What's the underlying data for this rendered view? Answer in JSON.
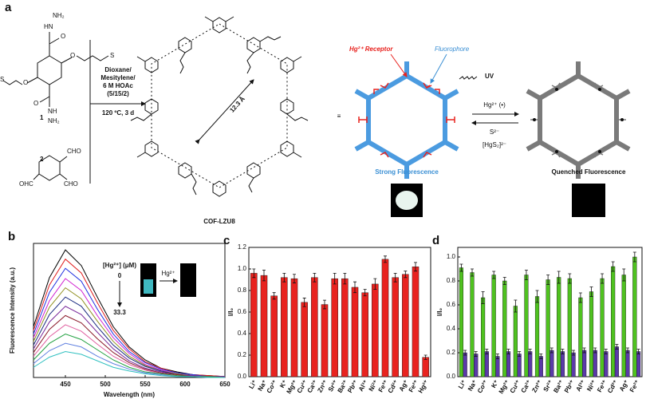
{
  "scheme": {
    "label": "a",
    "monomer_1": "1",
    "monomer_2": "2",
    "monomer_1_atoms": [
      "NH₂",
      "HN",
      "O",
      "O",
      "S",
      "O",
      "S",
      "O",
      "NH",
      "NH₂"
    ],
    "monomer_2_atoms": [
      "CHO",
      "OHC",
      "CHO"
    ],
    "conditions": [
      "Dioxane/",
      "Mesitylene/",
      "6 M HOAc",
      "(5/15/2)"
    ],
    "temperature": "120 ºC, 3 d",
    "pore_size": "12.3 Å",
    "cof_name": "COF-LZU8",
    "equivalent": "≡",
    "receptor": "Hg²⁺ Receptor",
    "fluorophore": "Fluorophore",
    "light": "UV",
    "forward": "Hg²⁺ (•)",
    "reverse": "S²⁻",
    "byproduct": "[HgS₂]²⁻",
    "state_on": "Strong Fluorescence",
    "state_off": "Quenched Fluorescence"
  },
  "chart_data": [
    {
      "type": "line",
      "label": "b",
      "xlabel": "Wavelength (nm)",
      "ylabel": "Fluorescence Intensity (a.u.)",
      "x": [
        410,
        430,
        450,
        470,
        490,
        510,
        530,
        550,
        570,
        590,
        610,
        630,
        650
      ],
      "xlim": [
        410,
        650
      ],
      "xticks": [
        450,
        500,
        550,
        600,
        650
      ],
      "ylim": [
        0,
        1.45
      ],
      "inset": {
        "title": "[Hg²⁺] (μM)",
        "start": "0",
        "end": "33.3",
        "reagent": "Hg²⁺"
      },
      "series": [
        {
          "color": "#000000",
          "values": [
            0.55,
            1.08,
            1.38,
            1.21,
            0.87,
            0.55,
            0.33,
            0.19,
            0.1,
            0.06,
            0.03,
            0.02,
            0.01
          ]
        },
        {
          "color": "#e02020",
          "values": [
            0.51,
            1.0,
            1.28,
            1.13,
            0.81,
            0.51,
            0.31,
            0.17,
            0.1,
            0.05,
            0.03,
            0.02,
            0.01
          ]
        },
        {
          "color": "#2030e0",
          "values": [
            0.47,
            0.92,
            1.18,
            1.04,
            0.74,
            0.47,
            0.28,
            0.16,
            0.09,
            0.05,
            0.03,
            0.01,
            0.01
          ]
        },
        {
          "color": "#d020d0",
          "values": [
            0.43,
            0.83,
            1.07,
            0.94,
            0.67,
            0.43,
            0.26,
            0.14,
            0.08,
            0.04,
            0.02,
            0.01,
            0.01
          ]
        },
        {
          "color": "#909020",
          "values": [
            0.39,
            0.76,
            0.97,
            0.85,
            0.61,
            0.39,
            0.23,
            0.13,
            0.07,
            0.04,
            0.02,
            0.01,
            0.01
          ]
        },
        {
          "color": "#1a2a80",
          "values": [
            0.35,
            0.68,
            0.87,
            0.77,
            0.55,
            0.35,
            0.21,
            0.12,
            0.07,
            0.03,
            0.02,
            0.01,
            0.01
          ]
        },
        {
          "color": "#7a2a9a",
          "values": [
            0.31,
            0.6,
            0.77,
            0.68,
            0.49,
            0.31,
            0.18,
            0.1,
            0.06,
            0.03,
            0.02,
            0.01,
            0.01
          ]
        },
        {
          "color": "#8a1a2a",
          "values": [
            0.27,
            0.52,
            0.67,
            0.59,
            0.42,
            0.27,
            0.16,
            0.09,
            0.05,
            0.03,
            0.01,
            0.01,
            0.0
          ]
        },
        {
          "color": "#e060a0",
          "values": [
            0.23,
            0.44,
            0.57,
            0.5,
            0.36,
            0.23,
            0.14,
            0.08,
            0.04,
            0.02,
            0.01,
            0.01,
            0.0
          ]
        },
        {
          "color": "#20a040",
          "values": [
            0.19,
            0.37,
            0.47,
            0.41,
            0.3,
            0.19,
            0.11,
            0.06,
            0.04,
            0.02,
            0.01,
            0.01,
            0.0
          ]
        },
        {
          "color": "#6080e0",
          "values": [
            0.15,
            0.29,
            0.37,
            0.33,
            0.23,
            0.15,
            0.09,
            0.05,
            0.03,
            0.01,
            0.01,
            0.0,
            0.0
          ]
        },
        {
          "color": "#30c0c0",
          "values": [
            0.11,
            0.22,
            0.28,
            0.25,
            0.18,
            0.11,
            0.07,
            0.04,
            0.02,
            0.01,
            0.01,
            0.0,
            0.0
          ]
        }
      ]
    },
    {
      "type": "bar",
      "label": "c",
      "ylabel": "I/I₀",
      "color": "#e8231f",
      "categories": [
        "Li⁺",
        "Na⁺",
        "Co²⁺",
        "K⁺",
        "Mg²⁺",
        "Cu²⁺",
        "Ca²⁺",
        "Zn²⁺",
        "Sr²⁺",
        "Ba²⁺",
        "Pb²⁺",
        "Al³⁺",
        "Ni²⁺",
        "Fe³⁺",
        "Cd²⁺",
        "Ag⁺",
        "Fe²⁺",
        "Hg²⁺"
      ],
      "values": [
        0.96,
        0.94,
        0.75,
        0.92,
        0.91,
        0.69,
        0.92,
        0.67,
        0.91,
        0.91,
        0.83,
        0.78,
        0.86,
        1.09,
        0.92,
        0.95,
        1.02,
        0.18
      ],
      "errors": [
        0.04,
        0.05,
        0.03,
        0.04,
        0.04,
        0.04,
        0.04,
        0.04,
        0.05,
        0.05,
        0.05,
        0.03,
        0.05,
        0.03,
        0.04,
        0.03,
        0.04,
        0.02
      ],
      "ylim": [
        0,
        1.2
      ],
      "yticks": [
        {
          "value": 0,
          "label": "0.0"
        },
        {
          "value": 0.2,
          "label": "0.2"
        },
        {
          "value": 0.4,
          "label": "0.4"
        },
        {
          "value": 0.6,
          "label": "0.6"
        },
        {
          "value": 0.8,
          "label": "0.8"
        },
        {
          "value": 1.0,
          "label": "1.0"
        },
        {
          "value": 1.2,
          "label": "1.2"
        }
      ]
    },
    {
      "type": "grouped_bar",
      "label": "d",
      "ylabel": "I/I₀",
      "categories": [
        "Li⁺",
        "Na⁺",
        "Co²⁺",
        "K⁺",
        "Mg²⁺",
        "Cu²⁺",
        "Ca²⁺",
        "Zn²⁺",
        "Sr²⁺",
        "Ba²⁺",
        "Pb²⁺",
        "Al³⁺",
        "Ni²⁺",
        "Fe³⁺",
        "Cd²⁺",
        "Ag⁺",
        "Fe²⁺"
      ],
      "series": [
        {
          "color": "#4fc21f",
          "values": [
            0.91,
            0.87,
            0.66,
            0.85,
            0.8,
            0.59,
            0.85,
            0.67,
            0.81,
            0.83,
            0.82,
            0.66,
            0.71,
            0.82,
            0.92,
            0.85,
            1.0
          ],
          "errors": [
            0.03,
            0.03,
            0.05,
            0.03,
            0.03,
            0.05,
            0.04,
            0.05,
            0.04,
            0.05,
            0.04,
            0.04,
            0.04,
            0.04,
            0.04,
            0.05,
            0.04
          ]
        },
        {
          "color": "#5a3aa8",
          "values": [
            0.2,
            0.19,
            0.21,
            0.17,
            0.21,
            0.19,
            0.21,
            0.17,
            0.22,
            0.21,
            0.2,
            0.22,
            0.22,
            0.21,
            0.25,
            0.22,
            0.21
          ],
          "errors": [
            0.02,
            0.02,
            0.02,
            0.02,
            0.02,
            0.02,
            0.02,
            0.02,
            0.02,
            0.02,
            0.02,
            0.02,
            0.02,
            0.02,
            0.02,
            0.02,
            0.02
          ]
        }
      ],
      "ylim": [
        0,
        1.08
      ],
      "yticks": [
        {
          "value": 0,
          "label": "0.0"
        },
        {
          "value": 0.2,
          "label": "0.2"
        },
        {
          "value": 0.4,
          "label": "0.4"
        },
        {
          "value": 0.6,
          "label": "0.6"
        },
        {
          "value": 0.8,
          "label": "0.8"
        },
        {
          "value": 1.0,
          "label": "1.0"
        }
      ]
    }
  ]
}
